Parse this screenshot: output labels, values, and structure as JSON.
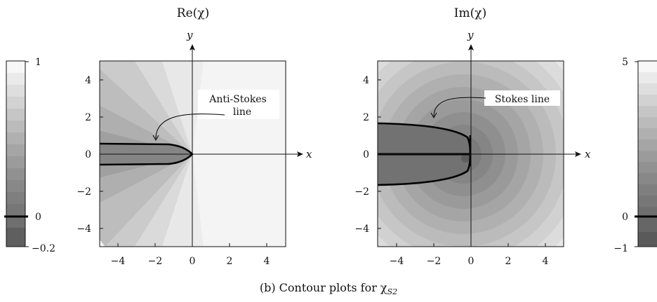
{
  "caption": "(b) Contour plots for χ",
  "caption_sub": "S2",
  "chart_data": [
    {
      "type": "heatmap",
      "title": "Re(χ)",
      "xlabel": "x",
      "ylabel": "y",
      "xlim": [
        -5,
        5
      ],
      "ylim": [
        -5,
        5
      ],
      "xticks": [
        "−4",
        "−2",
        "0",
        "2",
        "4"
      ],
      "yticks": [
        "4",
        "2",
        "0",
        "−2",
        "−4"
      ],
      "annotation": {
        "lines": [
          "Anti-Stokes",
          "line"
        ],
        "points_to": [
          -2,
          0.55
        ]
      },
      "colorbar": {
        "ticks": [
          "1",
          "0",
          "−0.2"
        ],
        "range": [
          -0.2,
          1
        ],
        "marked_level": 0
      }
    },
    {
      "type": "heatmap",
      "title": "Im(χ)",
      "xlabel": "x",
      "ylabel": "y",
      "xlim": [
        -5,
        5
      ],
      "ylim": [
        -5,
        5
      ],
      "xticks": [
        "−4",
        "−2",
        "0",
        "2",
        "4"
      ],
      "yticks": [
        "4",
        "2",
        "0",
        "−2",
        "−4"
      ],
      "annotation": {
        "lines": [
          "Stokes line"
        ],
        "points_to": [
          -2,
          1.3
        ]
      },
      "colorbar": {
        "ticks": [
          "5",
          "0",
          "−1"
        ],
        "range": [
          -1,
          5
        ],
        "marked_level": 0
      }
    }
  ]
}
